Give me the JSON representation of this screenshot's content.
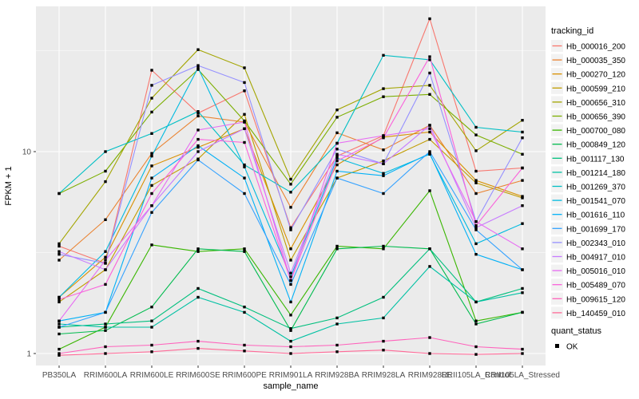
{
  "figure": {
    "y_axis_title": "FPKM + 1",
    "x_axis_title": "sample_name",
    "legend": {
      "tracking_title": "tracking_id",
      "quant_title": "quant_status",
      "quant_items": [
        {
          "label": "OK",
          "marker": "black-square"
        }
      ]
    },
    "colors": {
      "panel_bg": "#EBEBEB",
      "grid": "#FFFFFF",
      "axis_text": "#4D4D4D",
      "tick_mark": "#333333",
      "point": "#000000",
      "legend_key_bg": "#F2F2F2"
    }
  },
  "chart_data": {
    "type": "line",
    "x_type": "categorical",
    "y_scale": "log10",
    "xlabel": "sample_name",
    "ylabel": "FPKM + 1",
    "ylim": [
      0.87,
      52
    ],
    "y_major_ticks": [
      1,
      10
    ],
    "y_minor_gridlines": [
      3.162,
      31.62
    ],
    "grid": true,
    "legend_position": "right",
    "point_marker": {
      "shape": "square",
      "color": "#000000",
      "label": "OK"
    },
    "categories": [
      "PB350LA",
      "RRIM600LA",
      "RRIM600LE",
      "RRIM600SE",
      "RRIM600PE",
      "RRIM901LA",
      "RRIM928BA",
      "RRIM928LA",
      "RRIM928LE",
      "RRII105LA_Control",
      "RRII105LA_Stressed"
    ],
    "series": [
      {
        "name": "Hb_000016_200",
        "color": "#F8766D",
        "values": [
          3.4,
          2.8,
          25.3,
          15.5,
          20.0,
          4.2,
          9.5,
          12.0,
          45.5,
          8.0,
          8.3
        ]
      },
      {
        "name": "Hb_000035_350",
        "color": "#EA8331",
        "values": [
          2.9,
          4.6,
          9.8,
          15.0,
          14.0,
          5.3,
          12.4,
          10.2,
          13.5,
          6.2,
          7.2
        ]
      },
      {
        "name": "Hb_000270_120",
        "color": "#D89000",
        "values": [
          1.9,
          3.0,
          8.5,
          10.5,
          13.0,
          3.3,
          8.6,
          11.8,
          12.5,
          7.2,
          6.0
        ]
      },
      {
        "name": "Hb_000599_210",
        "color": "#C09B00",
        "values": [
          1.8,
          2.6,
          6.8,
          9.2,
          15.3,
          2.9,
          7.4,
          9.0,
          11.5,
          7.0,
          5.9
        ]
      },
      {
        "name": "Hb_000656_310",
        "color": "#A3A500",
        "values": [
          3.5,
          7.1,
          18.4,
          32.0,
          26.0,
          7.3,
          16.1,
          20.5,
          21.3,
          10.1,
          14.3
        ]
      },
      {
        "name": "Hb_000656_390",
        "color": "#7CAE00",
        "values": [
          6.2,
          8.0,
          15.7,
          25.5,
          14.2,
          6.9,
          14.8,
          18.7,
          19.2,
          12.1,
          9.7
        ]
      },
      {
        "name": "Hb_000700_080",
        "color": "#39B600",
        "values": [
          1.05,
          1.35,
          3.45,
          3.2,
          3.3,
          1.55,
          3.4,
          3.3,
          6.4,
          1.45,
          1.6
        ]
      },
      {
        "name": "Hb_000849_120",
        "color": "#00BB4E",
        "values": [
          1.25,
          1.3,
          1.7,
          3.3,
          3.2,
          1.3,
          3.3,
          3.4,
          3.3,
          1.4,
          1.6
        ]
      },
      {
        "name": "Hb_001117_130",
        "color": "#00BF7D",
        "values": [
          1.35,
          1.4,
          1.45,
          2.1,
          1.7,
          1.33,
          1.5,
          1.9,
          3.3,
          1.8,
          2.1
        ]
      },
      {
        "name": "Hb_001214_180",
        "color": "#00C1A3",
        "values": [
          1.4,
          1.35,
          1.35,
          1.9,
          1.6,
          1.15,
          1.4,
          1.5,
          2.7,
          1.8,
          2.0
        ]
      },
      {
        "name": "Hb_001269_370",
        "color": "#00BFC4",
        "values": [
          6.2,
          10.0,
          12.3,
          15.8,
          8.6,
          6.3,
          11.0,
          30.0,
          28.5,
          13.2,
          12.5
        ]
      },
      {
        "name": "Hb_001541_070",
        "color": "#00BAE0",
        "values": [
          1.9,
          3.2,
          9.5,
          26.0,
          8.4,
          2.4,
          9.3,
          7.8,
          9.7,
          3.5,
          4.4
        ]
      },
      {
        "name": "Hb_001616_110",
        "color": "#00B0F6",
        "values": [
          1.45,
          1.6,
          7.4,
          10.7,
          7.4,
          1.8,
          8.0,
          7.6,
          9.8,
          3.1,
          2.6
        ]
      },
      {
        "name": "Hb_001699_170",
        "color": "#35A2FF",
        "values": [
          1.35,
          1.6,
          5.0,
          9.1,
          6.2,
          2.2,
          7.4,
          6.2,
          10.0,
          4.1,
          2.6
        ]
      },
      {
        "name": "Hb_002343_010",
        "color": "#9590FF",
        "values": [
          3.1,
          2.8,
          21.3,
          26.7,
          22.0,
          4.1,
          10.3,
          8.7,
          24.5,
          4.5,
          11.7
        ]
      },
      {
        "name": "Hb_004917_010",
        "color": "#C77CFF",
        "values": [
          3.2,
          2.6,
          5.4,
          10.0,
          13.0,
          2.5,
          9.7,
          8.7,
          13.5,
          4.2,
          5.4
        ]
      },
      {
        "name": "Hb_005016_010",
        "color": "#E76BF3",
        "values": [
          1.45,
          2.9,
          5.4,
          12.8,
          14.0,
          2.3,
          11.0,
          12.0,
          13.0,
          4.5,
          3.3
        ]
      },
      {
        "name": "Hb_005489_070",
        "color": "#FA62DB",
        "values": [
          1.85,
          2.2,
          6.2,
          11.5,
          11.1,
          2.3,
          9.0,
          11.7,
          29.5,
          4.3,
          8.3
        ]
      },
      {
        "name": "Hb_009615_120",
        "color": "#FF62BC",
        "values": [
          1.0,
          1.08,
          1.1,
          1.15,
          1.1,
          1.08,
          1.1,
          1.15,
          1.2,
          1.08,
          1.05
        ]
      },
      {
        "name": "Hb_140459_010",
        "color": "#FF6A98",
        "values": [
          0.98,
          1.0,
          1.02,
          1.06,
          1.03,
          1.0,
          1.02,
          1.04,
          1.0,
          0.99,
          1.0
        ]
      }
    ]
  }
}
